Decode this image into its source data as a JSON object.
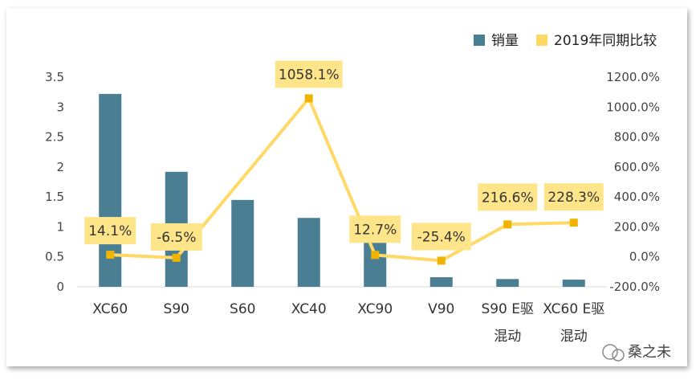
{
  "chart_data": {
    "type": "bar+line",
    "categories": [
      "XC60",
      "S90",
      "S60",
      "XC40",
      "XC90",
      "V90",
      "S90 E驱\n混动",
      "XC60 E驱\n混动"
    ],
    "series": [
      {
        "name": "销量",
        "type": "bar",
        "axis": "left",
        "color": "#4a7f93",
        "values": [
          3.22,
          1.92,
          1.45,
          1.15,
          0.84,
          0.16,
          0.13,
          0.12
        ]
      },
      {
        "name": "2019年同期比较",
        "type": "line",
        "axis": "right",
        "color": "#ffd966",
        "values": [
          14.1,
          -6.5,
          null,
          1058.1,
          12.7,
          -25.4,
          216.6,
          228.3
        ],
        "labels": [
          "14.1%",
          "-6.5%",
          "",
          "1058.1%",
          "12.7%",
          "-25.4%",
          "216.6%",
          "228.3%"
        ]
      }
    ],
    "y_left": {
      "min": 0,
      "max": 3.5,
      "ticks": [
        "0",
        "0.5",
        "1",
        "1.5",
        "2",
        "2.5",
        "3",
        "3.5"
      ]
    },
    "y_right": {
      "min": -200,
      "max": 1200,
      "ticks": [
        "-200.0%",
        "0.0%",
        "200.0%",
        "400.0%",
        "600.0%",
        "800.0%",
        "1000.0%",
        "1200.0%"
      ]
    },
    "legend": {
      "position": "top-right",
      "items": [
        "销量",
        "2019年同期比较"
      ]
    },
    "grid": false
  },
  "watermark": "桑之未",
  "colors": {
    "bar": "#4a7f93",
    "line": "#ffd966",
    "marker": "#f0b400",
    "label_bg": "#ffe58a"
  }
}
